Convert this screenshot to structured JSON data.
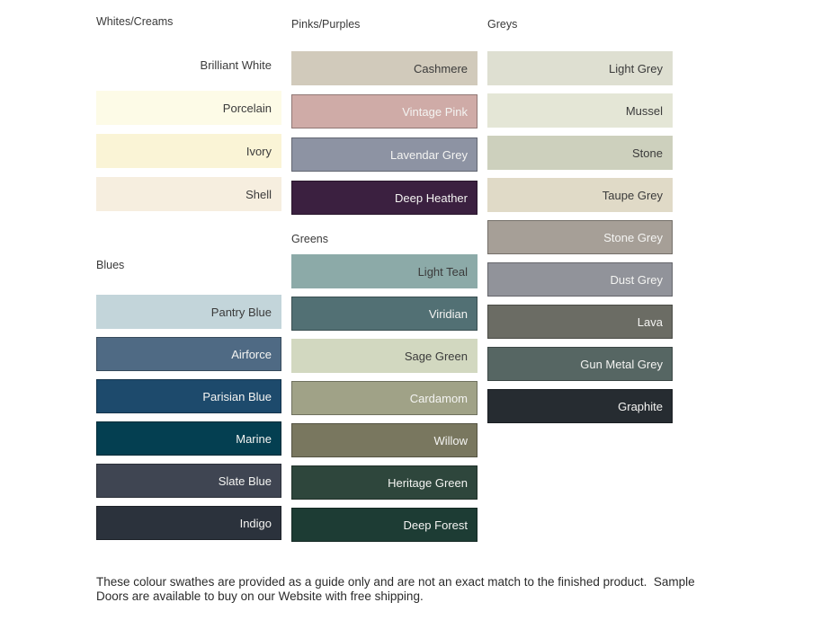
{
  "page": {
    "background": "#ffffff"
  },
  "groups": [
    {
      "id": "whites-creams",
      "title": "Whites/Creams",
      "swatches": [
        {
          "name": "Brilliant White",
          "color": "#ffffff",
          "label_style": "dark"
        },
        {
          "name": "Porcelain",
          "color": "#fdfbe7",
          "label_style": "dark"
        },
        {
          "name": "Ivory",
          "color": "#faf4d6",
          "label_style": "dark"
        },
        {
          "name": "Shell",
          "color": "#f6eedf",
          "label_style": "dark"
        }
      ]
    },
    {
      "id": "pinks-purples",
      "title": "Pinks/Purples",
      "swatches": [
        {
          "name": "Cashmere",
          "color": "#d1cabb",
          "label_style": "dark"
        },
        {
          "name": "Vintage Pink",
          "color": "#cfaba7",
          "label_style": "light"
        },
        {
          "name": "Lavendar Grey",
          "color": "#8d93a3",
          "label_style": "light"
        },
        {
          "name": "Deep Heather",
          "color": "#3b2040",
          "label_style": "light"
        }
      ]
    },
    {
      "id": "greys",
      "title": "Greys",
      "swatches": [
        {
          "name": "Light Grey",
          "color": "#dedfd1",
          "label_style": "dark"
        },
        {
          "name": "Mussel",
          "color": "#e4e6d6",
          "label_style": "dark"
        },
        {
          "name": "Stone",
          "color": "#cdd0bd",
          "label_style": "dark"
        },
        {
          "name": "Taupe Grey",
          "color": "#e0dac7",
          "label_style": "dark"
        },
        {
          "name": "Stone Grey",
          "color": "#a69f97",
          "label_style": "light"
        },
        {
          "name": "Dust Grey",
          "color": "#91939a",
          "label_style": "light"
        },
        {
          "name": "Lava",
          "color": "#6b6c64",
          "label_style": "light"
        },
        {
          "name": "Gun Metal Grey",
          "color": "#566663",
          "label_style": "light"
        },
        {
          "name": "Graphite",
          "color": "#262c31",
          "label_style": "light"
        }
      ]
    },
    {
      "id": "blues",
      "title": "Blues",
      "swatches": [
        {
          "name": "Pantry Blue",
          "color": "#c3d5da",
          "label_style": "dark"
        },
        {
          "name": "Airforce",
          "color": "#4f6a84",
          "label_style": "light"
        },
        {
          "name": "Parisian Blue",
          "color": "#1d4a6c",
          "label_style": "light"
        },
        {
          "name": "Marine",
          "color": "#043f51",
          "label_style": "light"
        },
        {
          "name": "Slate Blue",
          "color": "#3f4552",
          "label_style": "light"
        },
        {
          "name": "Indigo",
          "color": "#2b323c",
          "label_style": "light"
        }
      ]
    },
    {
      "id": "greens",
      "title": "Greens",
      "swatches": [
        {
          "name": "Light Teal",
          "color": "#8caaa8",
          "label_style": "dark"
        },
        {
          "name": "Viridian",
          "color": "#527074",
          "label_style": "light"
        },
        {
          "name": "Sage Green",
          "color": "#d2d8c0",
          "label_style": "dark"
        },
        {
          "name": "Cardamom",
          "color": "#a0a287",
          "label_style": "light"
        },
        {
          "name": "Willow",
          "color": "#79775f",
          "label_style": "light"
        },
        {
          "name": "Heritage Green",
          "color": "#2e463c",
          "label_style": "light"
        },
        {
          "name": "Deep Forest",
          "color": "#1d3c34",
          "label_style": "light"
        }
      ]
    }
  ],
  "footnote": {
    "line1": "These colour swathes are provided as a guide only and are not an exact match to the finished product.  Sample",
    "line2": "Doors are available to buy on our Website with free shipping."
  }
}
